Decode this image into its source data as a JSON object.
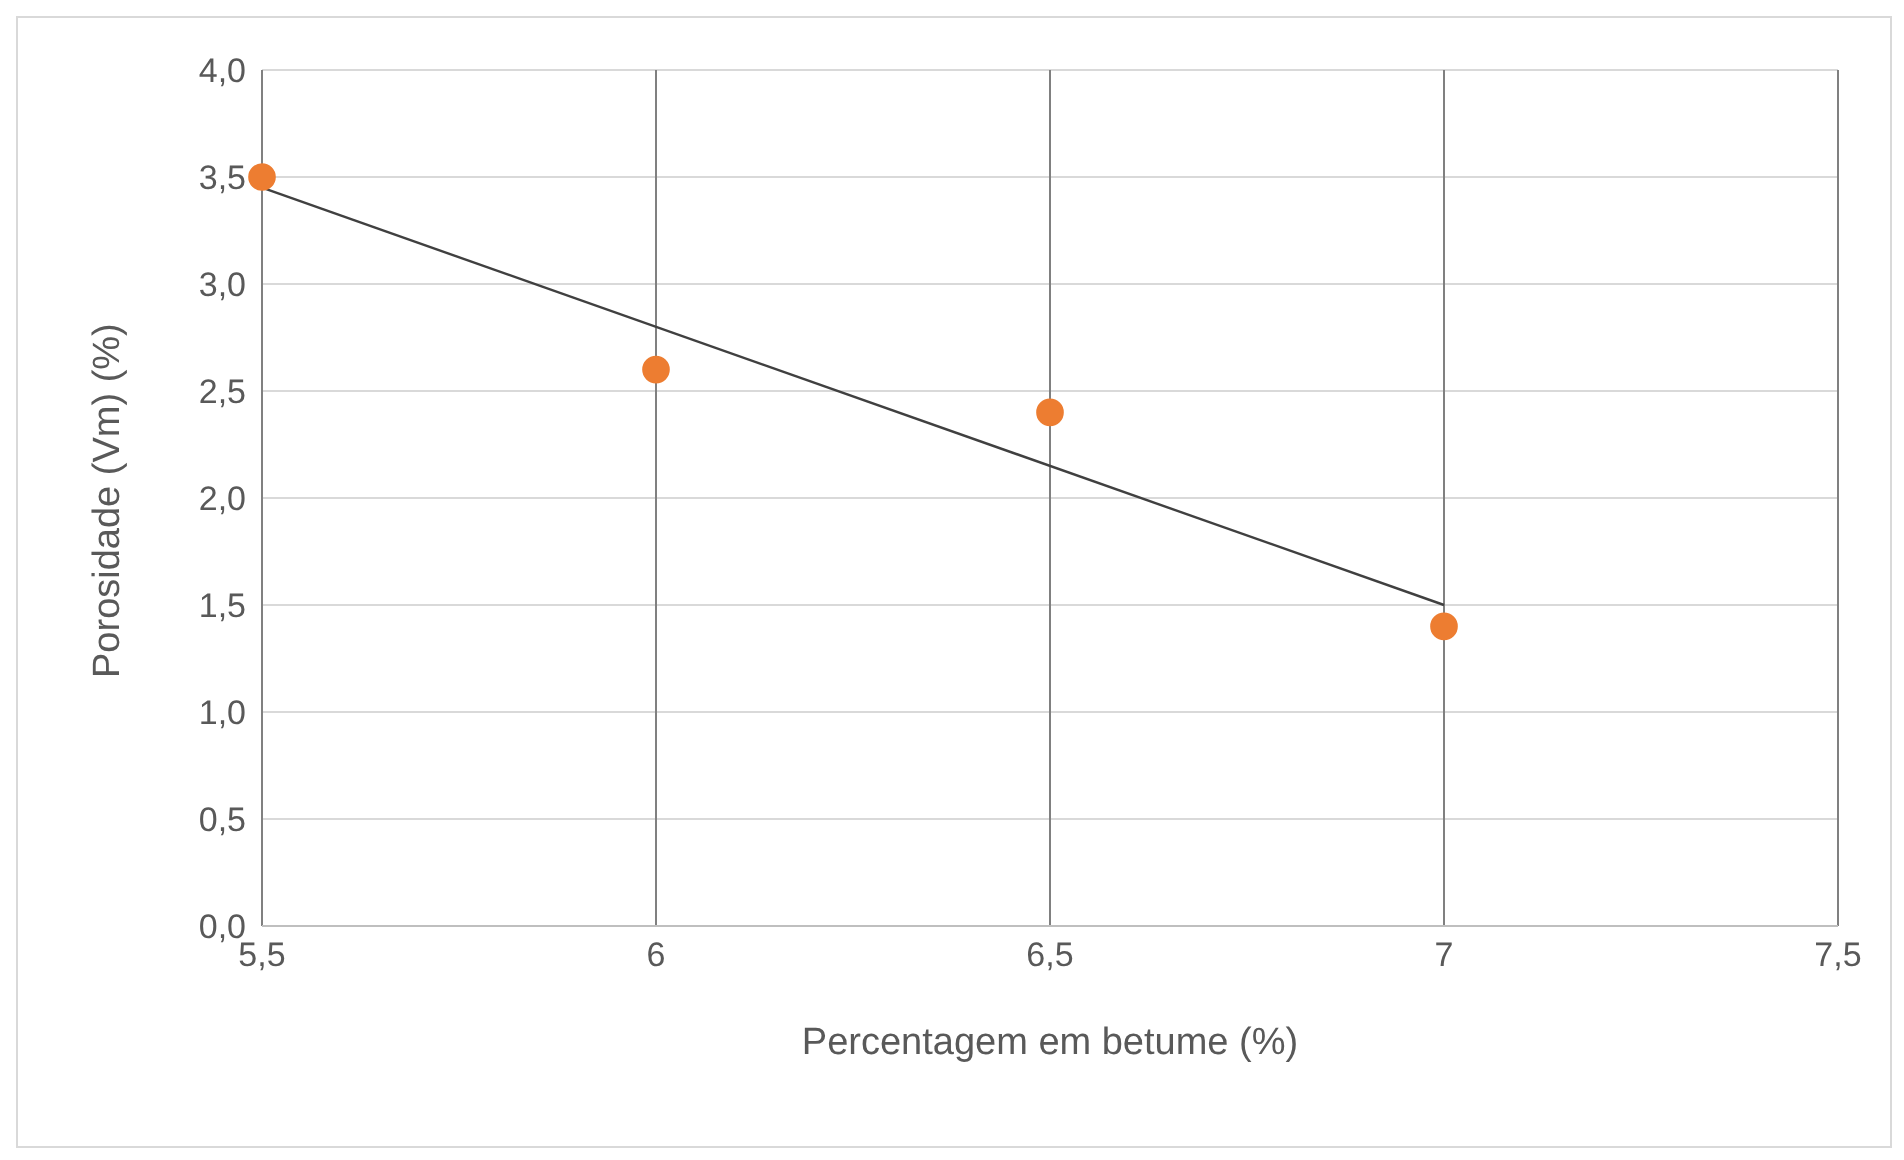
{
  "chart_data": {
    "type": "scatter",
    "xlabel": "Percentagem em betume (%)",
    "ylabel": "Porosidade (Vm) (%)",
    "x": [
      5.5,
      6,
      6.5,
      7
    ],
    "series": [
      {
        "type": "scatter",
        "color": "#ed7d31",
        "values": [
          3.5,
          2.6,
          2.4,
          1.4
        ],
        "marker": "circle"
      },
      {
        "type": "line",
        "color": "#404040",
        "x": [
          5.5,
          7
        ],
        "values": [
          3.45,
          1.5
        ],
        "marker": "none",
        "line_style": "solid"
      }
    ],
    "xlim": [
      5.5,
      7.5
    ],
    "xticks": [
      {
        "value": 5.5,
        "label": "5,5"
      },
      6,
      {
        "value": 6.5,
        "label": "6,5"
      },
      7,
      {
        "value": 7.5,
        "label": "7,5"
      }
    ],
    "ylim": [
      0,
      4
    ],
    "yticks": [
      {
        "value": 0,
        "label": "0,0"
      },
      {
        "value": 0.5,
        "label": "0,5"
      },
      {
        "value": 1,
        "label": "1,0"
      },
      {
        "value": 1.5,
        "label": "1,5"
      },
      {
        "value": 2,
        "label": "2,0"
      },
      {
        "value": 2.5,
        "label": "2,5"
      },
      {
        "value": 3,
        "label": "3,0"
      },
      {
        "value": 3.5,
        "label": "3,5"
      },
      {
        "value": 4,
        "label": "4,0"
      }
    ],
    "grid": true
  }
}
